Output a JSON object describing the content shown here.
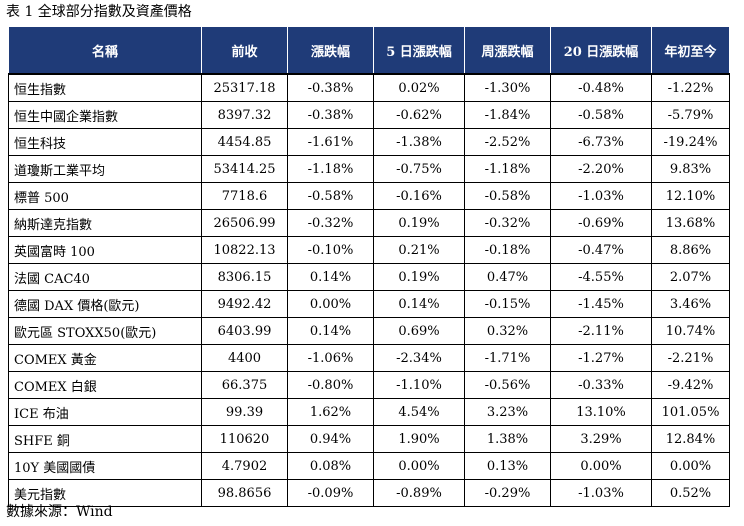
{
  "caption": "表 1 全球部分指數及資產價格",
  "source": "數據來源：Wind",
  "table": {
    "headers": [
      "名稱",
      "前收",
      "漲跌幅",
      "5 日漲跌幅",
      "周漲跌幅",
      "20 日漲跌幅",
      "年初至今"
    ],
    "rows": [
      [
        "恒生指數",
        "25317.18",
        "-0.38%",
        "0.02%",
        "-1.30%",
        "-0.48%",
        "-1.22%"
      ],
      [
        "恒生中國企業指數",
        "8397.32",
        "-0.38%",
        "-0.62%",
        "-1.84%",
        "-0.58%",
        "-5.79%"
      ],
      [
        "恒生科技",
        "4454.85",
        "-1.61%",
        "-1.38%",
        "-2.52%",
        "-6.73%",
        "-19.24%"
      ],
      [
        "道瓊斯工業平均",
        "53414.25",
        "-1.18%",
        "-0.75%",
        "-1.18%",
        "-2.20%",
        "9.83%"
      ],
      [
        "標普 500",
        "7718.6",
        "-0.58%",
        "-0.16%",
        "-0.58%",
        "-1.03%",
        "12.10%"
      ],
      [
        "納斯達克指數",
        "26506.99",
        "-0.32%",
        "0.19%",
        "-0.32%",
        "-0.69%",
        "13.68%"
      ],
      [
        "英國富時 100",
        "10822.13",
        "-0.10%",
        "0.21%",
        "-0.18%",
        "-0.47%",
        "8.86%"
      ],
      [
        "法國 CAC40",
        "8306.15",
        "0.14%",
        "0.19%",
        "0.47%",
        "-4.55%",
        "2.07%"
      ],
      [
        "德國 DAX 價格(歐元)",
        "9492.42",
        "0.00%",
        "0.14%",
        "-0.15%",
        "-1.45%",
        "3.46%"
      ],
      [
        "歐元區 STOXX50(歐元)",
        "6403.99",
        "0.14%",
        "0.69%",
        "0.32%",
        "-2.11%",
        "10.74%"
      ],
      [
        "COMEX 黃金",
        "4400",
        "-1.06%",
        "-2.34%",
        "-1.71%",
        "-1.27%",
        "-2.21%"
      ],
      [
        "COMEX 白銀",
        "66.375",
        "-0.80%",
        "-1.10%",
        "-0.56%",
        "-0.33%",
        "-9.42%"
      ],
      [
        "ICE 布油",
        "99.39",
        "1.62%",
        "4.54%",
        "3.23%",
        "13.10%",
        "101.05%"
      ],
      [
        "SHFE 銅",
        "110620",
        "0.94%",
        "1.90%",
        "1.38%",
        "3.29%",
        "12.84%"
      ],
      [
        "10Y 美國國債",
        "4.7902",
        "0.08%",
        "0.00%",
        "0.13%",
        "0.00%",
        "0.00%"
      ],
      [
        "美元指數",
        "98.8656",
        "-0.09%",
        "-0.89%",
        "-0.29%",
        "-1.03%",
        "0.52%"
      ]
    ]
  },
  "colors": {
    "header_bg": "#1f3b78",
    "header_text": "#ffffff"
  }
}
